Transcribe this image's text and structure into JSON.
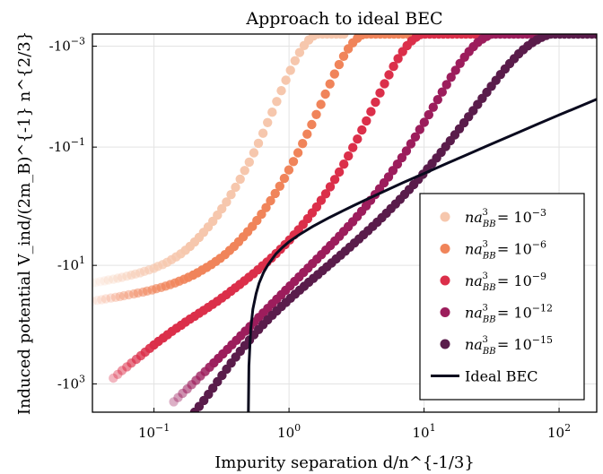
{
  "chart_data": {
    "type": "scatter",
    "title": "Approach to ideal BEC",
    "xlabel": "Impurity separation d/n^{-1/3}",
    "ylabel": "Induced potential V_ind/(2m_B)^{-1} n^{2/3}",
    "x_scale": "log",
    "y_scale": "symlog",
    "xlim": [
      0.035,
      190
    ],
    "ylim": [
      -3000,
      -0.00025
    ],
    "x_ticks": [
      {
        "value": 0.1,
        "base": "10",
        "exp": "−1"
      },
      {
        "value": 1,
        "base": "10",
        "exp": "0"
      },
      {
        "value": 10,
        "base": "10",
        "exp": "1"
      },
      {
        "value": 100,
        "base": "10",
        "exp": "2"
      }
    ],
    "y_ticks": [
      {
        "value": -0.001,
        "base": "-10",
        "exp": "−3"
      },
      {
        "value": -0.1,
        "base": "-10",
        "exp": "−1"
      },
      {
        "value": -10,
        "base": "-10",
        "exp": "1"
      },
      {
        "value": -1000,
        "base": "-10",
        "exp": "3"
      }
    ],
    "grid": true,
    "legend_position": "lower-right",
    "series": [
      {
        "name": "na_BB^3 = 10^-3",
        "label_base": "10",
        "label_exp": "−3",
        "color": "#f6c7ad",
        "kind": "points",
        "x": [
          0.035,
          0.037,
          0.04,
          0.043,
          0.046,
          0.05,
          0.054,
          0.058,
          0.063,
          0.068,
          0.073,
          0.079,
          0.085,
          0.092,
          0.1,
          0.107,
          0.116,
          0.125,
          0.135,
          0.146,
          0.158,
          0.171,
          0.185,
          0.2,
          0.216,
          0.233,
          0.252,
          0.273,
          0.295,
          0.318,
          0.344,
          0.372,
          0.402,
          0.435,
          0.47,
          0.508,
          0.549,
          0.594,
          0.642,
          0.694,
          0.75,
          0.811,
          0.877,
          0.948,
          1.025,
          1.108,
          1.198,
          1.295,
          1.4,
          1.513,
          1.636,
          1.769,
          1.912,
          2.067,
          2.235,
          2.416,
          2.55
        ],
        "y": [
          -20,
          -19.4,
          -18.8,
          -18.2,
          -17.6,
          -17.1,
          -16.5,
          -15.9,
          -15.2,
          -14.6,
          -14,
          -13.3,
          -12.6,
          -11.9,
          -11.2,
          -10.4,
          -9.7,
          -8.9,
          -8,
          -7.2,
          -6.4,
          -5.56,
          -4.77,
          -4.03,
          -3.37,
          -2.77,
          -2.25,
          -1.8,
          -1.42,
          -1.11,
          -0.85,
          -0.64,
          -0.48,
          -0.35,
          -0.25,
          -0.18,
          -0.125,
          -0.086,
          -0.058,
          -0.038,
          -0.025,
          -0.0162,
          -0.0103,
          -0.0065,
          -0.0041,
          -0.00253,
          -0.00156,
          -0.00095,
          -0.00058,
          -0.00035,
          -0.00025,
          -0.00025,
          -0.00025,
          -0.00025,
          -0.00025,
          -0.00025,
          -0.00025
        ]
      },
      {
        "name": "na_BB^3 = 10^-6",
        "label_base": "10",
        "label_exp": "−6",
        "color": "#f0845a",
        "kind": "points",
        "x": [
          0.035,
          0.038,
          0.041,
          0.044,
          0.048,
          0.052,
          0.056,
          0.06,
          0.065,
          0.071,
          0.076,
          0.083,
          0.089,
          0.097,
          0.104,
          0.113,
          0.122,
          0.132,
          0.143,
          0.154,
          0.167,
          0.18,
          0.195,
          0.21,
          0.227,
          0.246,
          0.266,
          0.287,
          0.31,
          0.336,
          0.363,
          0.392,
          0.424,
          0.458,
          0.495,
          0.535,
          0.578,
          0.625,
          0.676,
          0.73,
          0.79,
          0.854,
          0.923,
          0.997,
          1.078,
          1.166,
          1.26,
          1.362,
          1.472,
          1.592,
          1.721,
          1.86,
          2.011,
          2.174,
          2.35,
          2.54,
          2.746,
          2.969,
          3.21,
          3.47,
          3.751,
          4.055,
          4.384,
          4.739,
          5.123,
          5.538,
          5.987,
          6.472,
          6.997,
          7.564,
          8.177
        ],
        "y": [
          -40,
          -38.9,
          -37.8,
          -36.7,
          -35.6,
          -34.6,
          -33.5,
          -32.5,
          -31.4,
          -30.3,
          -29.3,
          -28.2,
          -27.1,
          -26,
          -24.8,
          -23.6,
          -22.4,
          -21.1,
          -19.8,
          -18.5,
          -17.2,
          -15.9,
          -14.6,
          -13.3,
          -12,
          -10.8,
          -9.7,
          -8.6,
          -7.6,
          -6.6,
          -5.6,
          -4.8,
          -4,
          -3.3,
          -2.7,
          -2.2,
          -1.75,
          -1.37,
          -1.06,
          -0.81,
          -0.61,
          -0.46,
          -0.34,
          -0.245,
          -0.176,
          -0.125,
          -0.087,
          -0.06,
          -0.041,
          -0.0275,
          -0.0182,
          -0.0119,
          -0.0077,
          -0.0049,
          -0.0031,
          -0.00196,
          -0.00122,
          -0.00076,
          -0.00047,
          -0.00029,
          -0.00025,
          -0.00025,
          -0.00025,
          -0.00025,
          -0.00025,
          -0.00025,
          -0.00025,
          -0.00025,
          -0.00025,
          -0.00025,
          -0.00025
        ]
      },
      {
        "name": "na_BB^3 = 10^-9",
        "label_base": "10",
        "label_exp": "−9",
        "color": "#db2f4a",
        "kind": "points",
        "x": [
          0.05,
          0.054,
          0.058,
          0.063,
          0.068,
          0.074,
          0.08,
          0.086,
          0.093,
          0.1,
          0.108,
          0.117,
          0.126,
          0.136,
          0.147,
          0.159,
          0.171,
          0.185,
          0.2,
          0.216,
          0.233,
          0.252,
          0.272,
          0.294,
          0.318,
          0.343,
          0.371,
          0.4,
          0.432,
          0.467,
          0.504,
          0.545,
          0.588,
          0.636,
          0.686,
          0.741,
          0.801,
          0.865,
          0.934,
          1.009,
          1.09,
          1.177,
          1.272,
          1.374,
          1.484,
          1.603,
          1.731,
          1.87,
          2.02,
          2.182,
          2.357,
          2.546,
          2.75,
          2.97,
          3.208,
          3.466,
          3.743,
          4.043,
          4.368,
          4.717,
          5.096,
          5.504,
          5.946,
          6.422,
          6.937,
          7.493,
          8.094,
          8.743,
          9.444,
          10.2,
          11.02,
          11.9,
          12.86,
          13.89,
          15,
          16.2,
          17.5,
          18.9,
          20.42,
          22.06,
          23.83,
          25.74
        ],
        "y": [
          -800,
          -690,
          -595,
          -515,
          -445,
          -385,
          -333,
          -290,
          -252,
          -220,
          -192,
          -168,
          -148,
          -130,
          -115,
          -102,
          -90.5,
          -80.5,
          -72,
          -64.3,
          -57.5,
          -51.3,
          -45.6,
          -40.4,
          -35.6,
          -31.3,
          -27.4,
          -24,
          -21,
          -18.3,
          -15.9,
          -13.8,
          -11.9,
          -10.2,
          -8.8,
          -7.5,
          -6.35,
          -5.35,
          -4.48,
          -3.72,
          -3.07,
          -2.51,
          -2.03,
          -1.63,
          -1.3,
          -1.03,
          -0.8,
          -0.62,
          -0.47,
          -0.355,
          -0.265,
          -0.195,
          -0.142,
          -0.102,
          -0.073,
          -0.051,
          -0.0355,
          -0.0245,
          -0.0167,
          -0.0113,
          -0.0076,
          -0.0051,
          -0.0034,
          -0.00224,
          -0.00147,
          -0.00096,
          -0.00063,
          -0.00041,
          -0.00027,
          -0.00025,
          -0.00025,
          -0.00025,
          -0.00025,
          -0.00025,
          -0.00025,
          -0.00025,
          -0.00025,
          -0.00025,
          -0.00025,
          -0.00025,
          -0.00025,
          -0.00025
        ]
      },
      {
        "name": "na_BB^3 = 10^-12",
        "label_base": "10",
        "label_exp": "−12",
        "color": "#9c1d5c",
        "kind": "points",
        "x": [
          0.14,
          0.151,
          0.163,
          0.176,
          0.19,
          0.205,
          0.221,
          0.239,
          0.258,
          0.278,
          0.3,
          0.324,
          0.35,
          0.378,
          0.408,
          0.44,
          0.475,
          0.513,
          0.553,
          0.597,
          0.645,
          0.696,
          0.751,
          0.811,
          0.875,
          0.944,
          1.019,
          1.1,
          1.187,
          1.281,
          1.383,
          1.492,
          1.61,
          1.738,
          1.876,
          2.024,
          2.185,
          2.358,
          2.545,
          2.747,
          2.964,
          3.199,
          3.452,
          3.726,
          4.021,
          4.34,
          4.683,
          5.054,
          5.455,
          5.887,
          6.353,
          6.856,
          7.399,
          7.985,
          8.618,
          9.3,
          10.04,
          10.83,
          11.69,
          12.62,
          13.62,
          14.7,
          15.86,
          17.12,
          18.47,
          19.94,
          21.52,
          23.22,
          25.06,
          27.05,
          29.19,
          31.5,
          34,
          36.69,
          39.6,
          42.73,
          46.12,
          49.77,
          53.71,
          57.97,
          62.56,
          67.51,
          72.86
        ],
        "y": [
          -2000,
          -1700,
          -1440,
          -1220,
          -1030,
          -870,
          -735,
          -620,
          -522,
          -440,
          -370,
          -311,
          -261,
          -219,
          -184,
          -154,
          -129,
          -108,
          -90.5,
          -75.8,
          -63.5,
          -53.2,
          -44.6,
          -37.4,
          -31.4,
          -26.4,
          -22.2,
          -18.7,
          -15.7,
          -13.2,
          -11.1,
          -9.35,
          -7.85,
          -6.6,
          -5.53,
          -4.63,
          -3.87,
          -3.23,
          -2.68,
          -2.22,
          -1.83,
          -1.5,
          -1.22,
          -0.99,
          -0.8,
          -0.64,
          -0.51,
          -0.405,
          -0.32,
          -0.25,
          -0.195,
          -0.151,
          -0.116,
          -0.088,
          -0.067,
          -0.05,
          -0.0375,
          -0.0278,
          -0.0205,
          -0.015,
          -0.0109,
          -0.0079,
          -0.0057,
          -0.0041,
          -0.00292,
          -0.00207,
          -0.00147,
          -0.00104,
          -0.00073,
          -0.00052,
          -0.00037,
          -0.00026,
          -0.00025,
          -0.00025,
          -0.00025,
          -0.00025,
          -0.00025,
          -0.00025,
          -0.00025,
          -0.00025,
          -0.00025,
          -0.00025,
          -0.00025
        ]
      },
      {
        "name": "na_BB^3 = 10^-15",
        "label_base": "10",
        "label_exp": "−15",
        "color": "#5a1c4b",
        "kind": "points",
        "x": [
          0.2,
          0.216,
          0.234,
          0.253,
          0.273,
          0.295,
          0.319,
          0.345,
          0.373,
          0.403,
          0.436,
          0.471,
          0.509,
          0.55,
          0.595,
          0.643,
          0.695,
          0.751,
          0.812,
          0.878,
          0.949,
          1.026,
          1.109,
          1.199,
          1.296,
          1.401,
          1.514,
          1.637,
          1.769,
          1.912,
          2.067,
          2.234,
          2.415,
          2.611,
          2.822,
          3.05,
          3.297,
          3.564,
          3.853,
          4.165,
          4.502,
          4.866,
          5.26,
          5.686,
          6.146,
          6.644,
          7.182,
          7.763,
          8.392,
          9.071,
          9.806,
          10.6,
          11.46,
          12.39,
          13.39,
          14.47,
          15.64,
          16.91,
          18.28,
          19.76,
          21.36,
          23.09,
          24.96,
          26.98,
          29.16,
          31.52,
          34.08,
          36.84,
          39.82,
          43.04,
          46.53,
          50.29,
          54.37,
          58.77,
          63.53,
          68.67,
          74.23,
          80.24,
          86.74,
          93.76,
          101.4,
          109.6,
          118.4,
          128,
          138.4,
          149.6,
          161.7,
          174.8,
          188.9
        ],
        "y": [
          -3000,
          -2400,
          -1900,
          -1500,
          -1180,
          -920,
          -720,
          -565,
          -445,
          -352,
          -280,
          -225,
          -182,
          -148,
          -121,
          -100,
          -83,
          -69.5,
          -58.5,
          -49.5,
          -42,
          -35.8,
          -30.6,
          -26.2,
          -22.5,
          -19.3,
          -16.6,
          -14.3,
          -12.3,
          -10.6,
          -9.1,
          -7.8,
          -6.7,
          -5.75,
          -4.92,
          -4.2,
          -3.58,
          -3.05,
          -2.59,
          -2.2,
          -1.86,
          -1.57,
          -1.32,
          -1.1,
          -0.92,
          -0.765,
          -0.635,
          -0.525,
          -0.432,
          -0.354,
          -0.289,
          -0.235,
          -0.19,
          -0.153,
          -0.123,
          -0.098,
          -0.078,
          -0.0618,
          -0.0488,
          -0.0384,
          -0.0301,
          -0.0235,
          -0.0183,
          -0.0142,
          -0.011,
          -0.0085,
          -0.00655,
          -0.00503,
          -0.00385,
          -0.00294,
          -0.00224,
          -0.0017,
          -0.00129,
          -0.00098,
          -0.00074,
          -0.00056,
          -0.00042,
          -0.00032,
          -0.00025,
          -0.00025,
          -0.00025,
          -0.00025,
          -0.00025,
          -0.00025,
          -0.00025,
          -0.00025,
          -0.00025,
          -0.00025,
          -0.00025
        ]
      },
      {
        "name": "Ideal BEC",
        "color": "#0a0a1e",
        "kind": "line",
        "x": [
          0.5,
          0.505,
          0.52,
          0.54,
          0.57,
          0.6,
          0.65,
          0.7,
          0.8,
          0.9,
          1,
          1.2,
          1.5,
          2,
          2.5,
          3,
          4,
          5,
          7,
          10,
          15,
          20,
          30,
          50,
          70,
          100,
          150,
          190
        ],
        "y": [
          -3000,
          -500,
          -120,
          -55,
          -30,
          -20,
          -13,
          -9.7,
          -6.4,
          -4.9,
          -4,
          -3,
          -2.2,
          -1.55,
          -1.2,
          -0.98,
          -0.72,
          -0.57,
          -0.4,
          -0.28,
          -0.186,
          -0.14,
          -0.093,
          -0.056,
          -0.04,
          -0.028,
          -0.0187,
          -0.0147
        ]
      }
    ]
  }
}
